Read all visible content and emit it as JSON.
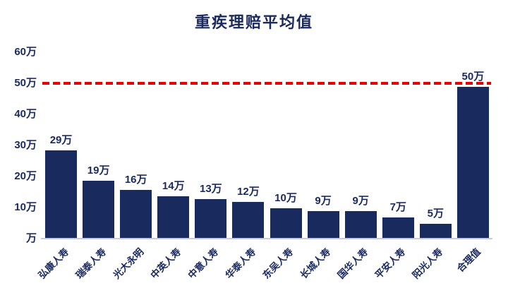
{
  "chart_data": {
    "type": "bar",
    "title": "重疾理赔平均值",
    "categories": [
      "弘康人寿",
      "瑞泰人寿",
      "光大永明",
      "中英人寿",
      "中意人寿",
      "华泰人寿",
      "东吴人寿",
      "长城人寿",
      "国华人寿",
      "平安人寿",
      "阳光人寿",
      "合理值"
    ],
    "values": [
      29,
      19,
      16,
      14,
      13,
      12,
      10,
      9,
      9,
      7,
      5,
      50
    ],
    "value_labels": [
      "29万",
      "19万",
      "16万",
      "14万",
      "13万",
      "12万",
      "10万",
      "9万",
      "9万",
      "7万",
      "5万",
      "50万"
    ],
    "unit": "万",
    "xlabel": "",
    "ylabel": "",
    "yticks": [
      "60万",
      "50万",
      "40万",
      "30万",
      "20万",
      "10万",
      "万"
    ],
    "ytick_values": [
      60,
      50,
      40,
      30,
      20,
      10,
      0
    ],
    "ylim": [
      0,
      60
    ],
    "grid": false,
    "legend": "none",
    "reference_line": {
      "value": 50,
      "style": "dashed",
      "color": "#e60000"
    },
    "colors": {
      "bar": "#182a5e",
      "text": "#1a2a5e",
      "reference_line": "#e60000",
      "axis_line": "#c9ccd4",
      "background": "#ffffff"
    }
  }
}
